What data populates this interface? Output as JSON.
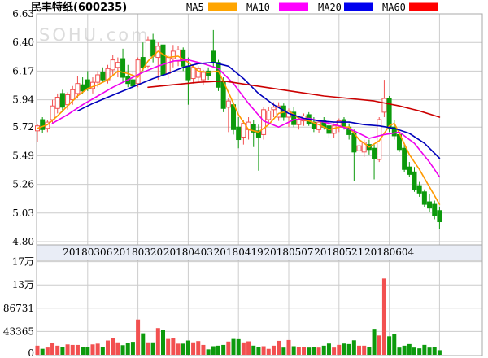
{
  "header": {
    "title": "民丰特纸(600235)",
    "legend": [
      {
        "label": "MA5",
        "color": "#ffa500"
      },
      {
        "label": "MA10",
        "color": "#ff00ff"
      },
      {
        "label": "MA20",
        "color": "#0000ee"
      },
      {
        "label": "MA60",
        "color": "#ff0000"
      }
    ]
  },
  "watermark": "SOHU.com",
  "chart_data": {
    "type": "candlestick",
    "title": "民丰特纸(600235)",
    "price_axis": {
      "labels": [
        "6.63",
        "6.40",
        "6.17",
        "5.94",
        "5.72",
        "5.49",
        "5.26",
        "5.03",
        "4.80"
      ],
      "range": [
        4.8,
        6.63
      ]
    },
    "volume_axis": {
      "labels": [
        "17万",
        "13万",
        "86731",
        "43365",
        "0"
      ],
      "range": [
        0,
        173460
      ],
      "step": 43365
    },
    "x_axis": {
      "date_labels": [
        "20180306",
        "20180320",
        "20180403",
        "20180419",
        "20180507",
        "20180521",
        "20180604"
      ],
      "label_indices": [
        10,
        20,
        30,
        40,
        50,
        60,
        70
      ],
      "extra_gridline_index": 80
    },
    "colors": {
      "up": "#f25050",
      "down": "#0c9a0c",
      "grid": "#cccccc",
      "border": "#a8a8a8",
      "date_strip_bg": "#e9edf6",
      "watermark": "#dcdcdc",
      "text": "#000000"
    },
    "legend_position": "top",
    "grid": true,
    "candles": [
      [
        5.69,
        5.74,
        5.6,
        5.73,
        16900
      ],
      [
        5.78,
        5.8,
        5.67,
        5.7,
        11100
      ],
      [
        5.71,
        5.78,
        5.68,
        5.76,
        13500
      ],
      [
        5.78,
        5.94,
        5.75,
        5.89,
        22200
      ],
      [
        5.87,
        5.99,
        5.83,
        5.96,
        16900
      ],
      [
        5.99,
        6.02,
        5.84,
        5.88,
        14500
      ],
      [
        5.9,
        6.0,
        5.86,
        5.98,
        19300
      ],
      [
        5.94,
        6.05,
        5.9,
        6.02,
        18300
      ],
      [
        5.99,
        6.13,
        5.95,
        6.07,
        18300
      ],
      [
        6.06,
        6.12,
        5.99,
        6.01,
        14900
      ],
      [
        6.1,
        6.17,
        6.01,
        6.03,
        14900
      ],
      [
        6.03,
        6.12,
        5.99,
        6.08,
        19300
      ],
      [
        6.08,
        6.17,
        6.04,
        6.14,
        20700
      ],
      [
        6.16,
        6.2,
        6.08,
        6.1,
        14900
      ],
      [
        6.1,
        6.22,
        6.07,
        6.19,
        26500
      ],
      [
        6.18,
        6.3,
        6.13,
        6.26,
        30400
      ],
      [
        6.2,
        6.28,
        6.12,
        6.24,
        23100
      ],
      [
        6.27,
        6.35,
        6.08,
        6.12,
        17800
      ],
      [
        6.13,
        6.22,
        6.04,
        6.07,
        21700
      ],
      [
        6.1,
        6.17,
        6.02,
        6.05,
        24100
      ],
      [
        6.07,
        6.28,
        6.04,
        6.26,
        65600
      ],
      [
        6.28,
        6.4,
        6.17,
        6.2,
        40000
      ],
      [
        6.21,
        6.45,
        6.19,
        6.42,
        23100
      ],
      [
        6.42,
        6.47,
        6.24,
        6.29,
        23100
      ],
      [
        6.28,
        6.4,
        6.1,
        6.37,
        49700
      ],
      [
        6.38,
        6.41,
        6.06,
        6.14,
        45800
      ],
      [
        6.15,
        6.3,
        6.11,
        6.28,
        29400
      ],
      [
        6.27,
        6.38,
        6.2,
        6.33,
        31300
      ],
      [
        6.25,
        6.37,
        6.21,
        6.34,
        20700
      ],
      [
        6.34,
        6.36,
        6.17,
        6.21,
        20700
      ],
      [
        6.21,
        6.28,
        5.9,
        6.1,
        26500
      ],
      [
        6.11,
        6.22,
        6.07,
        6.2,
        23100
      ],
      [
        6.12,
        6.21,
        6.08,
        6.19,
        25500
      ],
      [
        6.1,
        6.18,
        6.06,
        6.16,
        18300
      ],
      [
        6.17,
        6.2,
        6.1,
        6.13,
        10100
      ],
      [
        6.33,
        6.5,
        6.2,
        6.24,
        15900
      ],
      [
        6.24,
        6.26,
        6.01,
        6.04,
        16900
      ],
      [
        6.09,
        6.12,
        5.84,
        5.87,
        18300
      ],
      [
        5.88,
        5.95,
        5.68,
        5.93,
        24600
      ],
      [
        5.9,
        5.92,
        5.66,
        5.7,
        29400
      ],
      [
        5.72,
        5.8,
        5.55,
        5.62,
        29000
      ],
      [
        5.64,
        5.78,
        5.58,
        5.75,
        23000
      ],
      [
        5.7,
        5.8,
        5.62,
        5.76,
        25000
      ],
      [
        5.74,
        5.78,
        5.56,
        5.68,
        17000
      ],
      [
        5.69,
        5.74,
        5.37,
        5.64,
        15000
      ],
      [
        5.66,
        5.88,
        5.62,
        5.86,
        15900
      ],
      [
        5.78,
        5.88,
        5.74,
        5.85,
        11000
      ],
      [
        5.86,
        5.92,
        5.8,
        5.88,
        16900
      ],
      [
        5.8,
        5.92,
        5.77,
        5.89,
        25900
      ],
      [
        5.89,
        5.91,
        5.77,
        5.8,
        13400
      ],
      [
        5.8,
        5.87,
        5.72,
        5.85,
        27400
      ],
      [
        5.84,
        5.88,
        5.72,
        5.74,
        15900
      ],
      [
        5.74,
        5.8,
        5.7,
        5.78,
        14900
      ],
      [
        5.77,
        5.83,
        5.73,
        5.81,
        14900
      ],
      [
        5.82,
        5.84,
        5.73,
        5.75,
        13400
      ],
      [
        5.76,
        5.8,
        5.68,
        5.71,
        14900
      ],
      [
        5.7,
        5.78,
        5.67,
        5.76,
        13400
      ],
      [
        5.77,
        5.8,
        5.7,
        5.72,
        16900
      ],
      [
        5.73,
        5.76,
        5.63,
        5.67,
        20900
      ],
      [
        5.67,
        5.75,
        5.63,
        5.73,
        13400
      ],
      [
        5.73,
        5.79,
        5.68,
        5.77,
        18400
      ],
      [
        5.78,
        5.8,
        5.7,
        5.72,
        20900
      ],
      [
        5.72,
        5.75,
        5.62,
        5.66,
        19900
      ],
      [
        5.67,
        5.7,
        5.29,
        5.52,
        26900
      ],
      [
        5.53,
        5.6,
        5.45,
        5.57,
        16900
      ],
      [
        5.52,
        5.62,
        5.48,
        5.6,
        16900
      ],
      [
        5.58,
        5.62,
        5.5,
        5.54,
        14900
      ],
      [
        5.55,
        5.58,
        5.3,
        5.47,
        48300
      ],
      [
        5.46,
        5.8,
        5.44,
        5.78,
        35900
      ],
      [
        5.84,
        6.1,
        5.8,
        5.95,
        142000
      ],
      [
        5.95,
        5.97,
        5.68,
        5.71,
        34400
      ],
      [
        5.72,
        5.78,
        5.62,
        5.65,
        38300
      ],
      [
        5.66,
        5.68,
        5.52,
        5.54,
        13400
      ],
      [
        5.55,
        5.58,
        5.36,
        5.38,
        16900
      ],
      [
        5.4,
        5.44,
        5.32,
        5.34,
        19900
      ],
      [
        5.36,
        5.4,
        5.2,
        5.22,
        13400
      ],
      [
        5.25,
        5.28,
        5.16,
        5.19,
        11900
      ],
      [
        5.2,
        5.22,
        5.08,
        5.1,
        18400
      ],
      [
        5.12,
        5.18,
        5.04,
        5.07,
        13400
      ],
      [
        5.1,
        5.13,
        4.98,
        5.01,
        14900
      ],
      [
        5.05,
        5.08,
        4.9,
        4.96,
        8500
      ]
    ],
    "ma_series": [
      {
        "name": "MA5",
        "color": "#ff9900",
        "points": [
          [
            0,
            5.71
          ],
          [
            2,
            5.74
          ],
          [
            4,
            5.81
          ],
          [
            6,
            5.89
          ],
          [
            8,
            5.97
          ],
          [
            10,
            6.03
          ],
          [
            12,
            6.06
          ],
          [
            14,
            6.1
          ],
          [
            16,
            6.17
          ],
          [
            18,
            6.15
          ],
          [
            20,
            6.12
          ],
          [
            22,
            6.25
          ],
          [
            24,
            6.33
          ],
          [
            26,
            6.28
          ],
          [
            28,
            6.29
          ],
          [
            30,
            6.24
          ],
          [
            32,
            6.17
          ],
          [
            34,
            6.16
          ],
          [
            36,
            6.17
          ],
          [
            38,
            6.0
          ],
          [
            40,
            5.82
          ],
          [
            42,
            5.7
          ],
          [
            44,
            5.68
          ],
          [
            46,
            5.74
          ],
          [
            48,
            5.83
          ],
          [
            50,
            5.85
          ],
          [
            52,
            5.79
          ],
          [
            54,
            5.77
          ],
          [
            56,
            5.74
          ],
          [
            58,
            5.7
          ],
          [
            60,
            5.72
          ],
          [
            62,
            5.72
          ],
          [
            64,
            5.62
          ],
          [
            66,
            5.56
          ],
          [
            68,
            5.61
          ],
          [
            70,
            5.73
          ],
          [
            71,
            5.75
          ],
          [
            72,
            5.67
          ],
          [
            74,
            5.5
          ],
          [
            76,
            5.38
          ],
          [
            78,
            5.24
          ],
          [
            80,
            5.1
          ]
        ]
      },
      {
        "name": "MA10",
        "color": "#ee00ee",
        "points": [
          [
            3,
            5.75
          ],
          [
            6,
            5.82
          ],
          [
            9,
            5.9
          ],
          [
            12,
            5.97
          ],
          [
            15,
            6.04
          ],
          [
            18,
            6.1
          ],
          [
            21,
            6.16
          ],
          [
            24,
            6.21
          ],
          [
            27,
            6.25
          ],
          [
            30,
            6.26
          ],
          [
            33,
            6.23
          ],
          [
            36,
            6.19
          ],
          [
            39,
            6.07
          ],
          [
            42,
            5.91
          ],
          [
            45,
            5.77
          ],
          [
            48,
            5.72
          ],
          [
            51,
            5.78
          ],
          [
            54,
            5.79
          ],
          [
            57,
            5.76
          ],
          [
            60,
            5.73
          ],
          [
            63,
            5.69
          ],
          [
            66,
            5.63
          ],
          [
            69,
            5.66
          ],
          [
            72,
            5.68
          ],
          [
            75,
            5.59
          ],
          [
            78,
            5.44
          ],
          [
            80,
            5.32
          ]
        ]
      },
      {
        "name": "MA20",
        "color": "#0000bb",
        "points": [
          [
            8,
            5.85
          ],
          [
            11,
            5.91
          ],
          [
            14,
            5.96
          ],
          [
            17,
            6.01
          ],
          [
            20,
            6.06
          ],
          [
            23,
            6.11
          ],
          [
            26,
            6.15
          ],
          [
            29,
            6.2
          ],
          [
            32,
            6.23
          ],
          [
            35,
            6.24
          ],
          [
            38,
            6.21
          ],
          [
            41,
            6.11
          ],
          [
            44,
            5.99
          ],
          [
            47,
            5.9
          ],
          [
            50,
            5.83
          ],
          [
            53,
            5.79
          ],
          [
            56,
            5.77
          ],
          [
            59,
            5.76
          ],
          [
            62,
            5.76
          ],
          [
            65,
            5.74
          ],
          [
            68,
            5.73
          ],
          [
            71,
            5.71
          ],
          [
            74,
            5.67
          ],
          [
            77,
            5.59
          ],
          [
            80,
            5.47
          ]
        ]
      },
      {
        "name": "MA60",
        "color": "#cc0000",
        "points": [
          [
            22,
            6.04
          ],
          [
            27,
            6.06
          ],
          [
            32,
            6.08
          ],
          [
            37,
            6.09
          ],
          [
            42,
            6.06
          ],
          [
            47,
            6.03
          ],
          [
            52,
            6.0
          ],
          [
            57,
            5.97
          ],
          [
            62,
            5.95
          ],
          [
            67,
            5.93
          ],
          [
            72,
            5.89
          ],
          [
            76,
            5.85
          ],
          [
            80,
            5.8
          ]
        ]
      }
    ]
  }
}
